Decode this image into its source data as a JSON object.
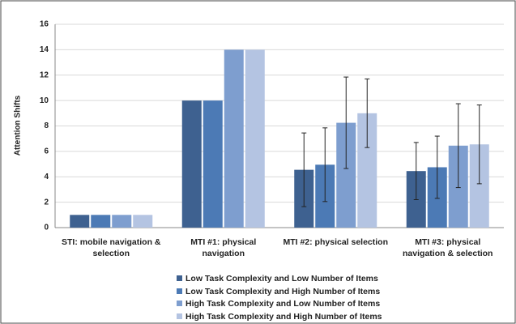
{
  "chart_data": {
    "type": "bar",
    "y_label": "Attention Shifts",
    "categories": [
      "STI: mobile navigation & selection",
      "MTI #1: physical navigation",
      "MTI #2: physical selection",
      "MTI #3: physical navigation & selection"
    ],
    "series": [
      {
        "name": "Low Task Complexity and Low Number of Items",
        "color": "#3e6190",
        "values": [
          1,
          10,
          4.55,
          4.45
        ],
        "errors": [
          null,
          null,
          2.9,
          2.25
        ]
      },
      {
        "name": "Low Task Complexity and High Number of Items",
        "color": "#4c7ab5",
        "values": [
          1,
          10,
          4.95,
          4.75
        ],
        "errors": [
          null,
          null,
          2.9,
          2.45
        ]
      },
      {
        "name": "High Task Complexity and Low Number of Items",
        "color": "#7e9ecf",
        "values": [
          1,
          14,
          8.25,
          6.45
        ],
        "errors": [
          null,
          null,
          3.6,
          3.3
        ]
      },
      {
        "name": "High Task Complexity and High Number of Items",
        "color": "#b4c4e2",
        "values": [
          1,
          14,
          9.0,
          6.55
        ],
        "errors": [
          null,
          null,
          2.7,
          3.1
        ]
      }
    ],
    "ylim": [
      0,
      16
    ],
    "yticks": [
      0,
      2,
      4,
      6,
      8,
      10,
      12,
      14,
      16
    ],
    "grid": true
  }
}
